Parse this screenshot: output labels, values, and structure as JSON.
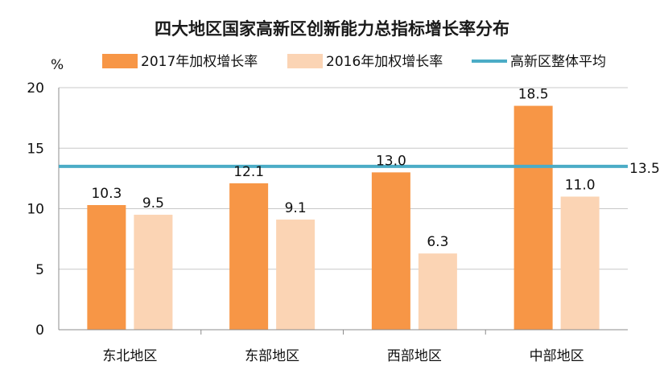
{
  "chart_data": {
    "type": "bar",
    "title": "四大地区国家高新区创新能力总指标增长率分布",
    "ylabel": "%",
    "xlabel": "",
    "categories": [
      "东北地区",
      "东部地区",
      "西部地区",
      "中部地区"
    ],
    "series": [
      {
        "name": "2017年加权增长率",
        "values": [
          10.3,
          12.1,
          13.0,
          18.5
        ],
        "color": "#F79646"
      },
      {
        "name": "2016年加权增长率",
        "values": [
          9.5,
          9.1,
          6.3,
          11.0
        ],
        "color": "#FBD4B4"
      }
    ],
    "reference_line": {
      "name": "高新区整体平均",
      "value": 13.5,
      "label": "13.5",
      "color": "#4BACC6"
    },
    "ylim": [
      0,
      20
    ],
    "yticks": [
      "0",
      "5",
      "10",
      "15",
      "20"
    ],
    "ytick_values": [
      0,
      5,
      10,
      15,
      20
    ],
    "data_labels": [
      [
        "10.3",
        "12.1",
        "13.0",
        "18.5"
      ],
      [
        "9.5",
        "9.1",
        "6.3",
        "11.0"
      ]
    ],
    "grid": true,
    "legend": "top"
  }
}
